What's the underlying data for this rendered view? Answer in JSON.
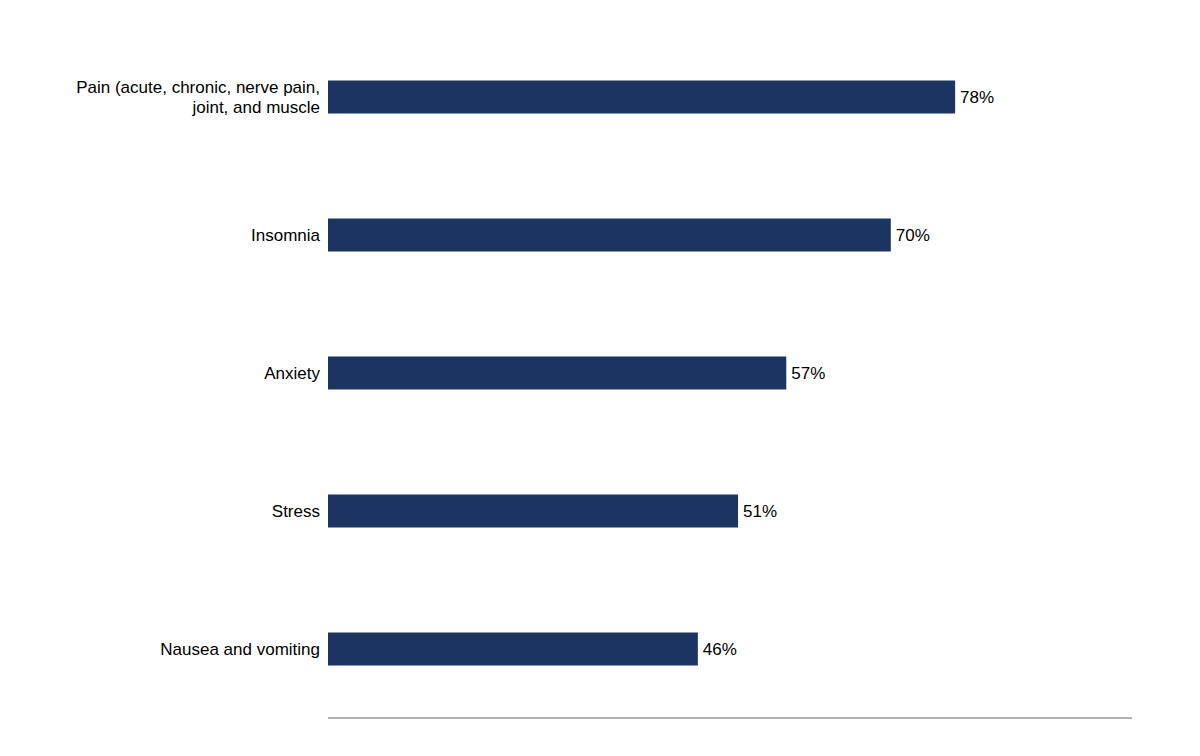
{
  "chart_data": {
    "type": "bar",
    "orientation": "horizontal",
    "categories": [
      "Pain (acute, chronic, nerve pain,\njoint, and muscle",
      "Insomnia",
      "Anxiety",
      "Stress",
      "Nausea and vomiting"
    ],
    "values": [
      78,
      70,
      57,
      51,
      46
    ],
    "value_labels": [
      "78%",
      "70%",
      "57%",
      "51%",
      "46%"
    ],
    "data_labels": true,
    "color": "#1c3461",
    "xlim": [
      0,
      100
    ],
    "tick_labels": "y"
  }
}
